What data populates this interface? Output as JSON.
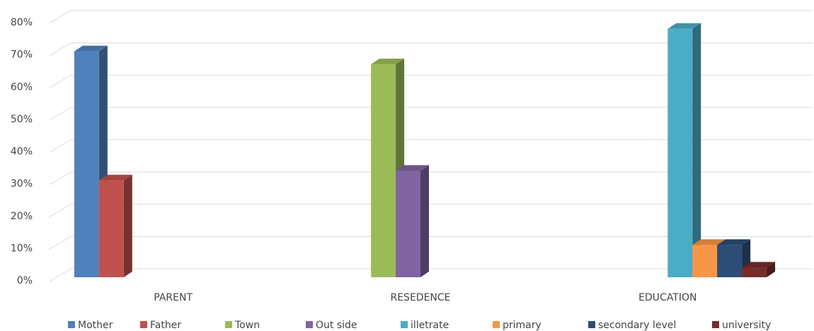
{
  "chart_data": {
    "type": "bar3d",
    "categories": [
      "PARENT",
      "RESEDENCE",
      "EDUCATION"
    ],
    "series": [
      {
        "name": "Mother",
        "color": "#4f81bd",
        "values": [
          70,
          null,
          null
        ]
      },
      {
        "name": "Father",
        "color": "#c0504d",
        "values": [
          30,
          null,
          null
        ]
      },
      {
        "name": "Town",
        "color": "#9bbb59",
        "values": [
          null,
          66,
          null
        ]
      },
      {
        "name": "Out side",
        "color": "#8064a2",
        "values": [
          null,
          33,
          null
        ]
      },
      {
        "name": "illetrate",
        "color": "#4bacc6",
        "values": [
          null,
          null,
          77
        ]
      },
      {
        "name": "primary",
        "color": "#f79646",
        "values": [
          null,
          null,
          10
        ]
      },
      {
        "name": "secondary level",
        "color": "#2c4d75",
        "values": [
          null,
          null,
          10
        ]
      },
      {
        "name": "university",
        "color": "#772c2a",
        "values": [
          null,
          null,
          3
        ]
      }
    ],
    "ylim": [
      0,
      80
    ],
    "yticks": [
      {
        "value": 0,
        "label": "0%"
      },
      {
        "value": 10,
        "label": "10%"
      },
      {
        "value": 20,
        "label": "20%"
      },
      {
        "value": 30,
        "label": "30%"
      },
      {
        "value": 40,
        "label": "40%"
      },
      {
        "value": 50,
        "label": "50%"
      },
      {
        "value": 60,
        "label": "60%"
      },
      {
        "value": 70,
        "label": "70%"
      },
      {
        "value": 80,
        "label": "80%"
      }
    ],
    "grid": true,
    "legend": "bottom"
  }
}
